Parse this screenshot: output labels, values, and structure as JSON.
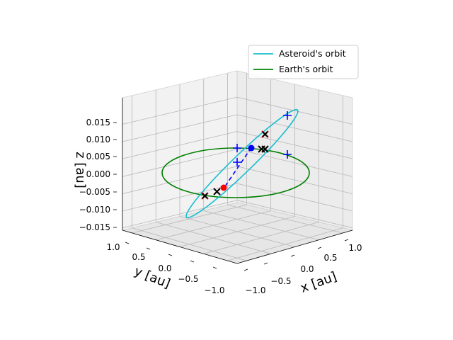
{
  "chart_data": {
    "type": "3d-line",
    "xlabel": "x [au]",
    "ylabel": "y [au]",
    "zlabel": "z [au]",
    "x_ticks": [
      "−1.0",
      "−0.5",
      "0.0",
      "0.5",
      "1.0"
    ],
    "y_ticks": [
      "−1.0",
      "−0.5",
      "0.0",
      "0.5",
      "1.0"
    ],
    "z_ticks": [
      "−0.015",
      "−0.010",
      "−0.005",
      "0.000",
      "0.005",
      "0.010",
      "0.015"
    ],
    "xlim": [
      -1.2,
      1.2
    ],
    "ylim": [
      -1.2,
      1.2
    ],
    "zlim": [
      -0.015,
      0.016
    ],
    "grid": true,
    "legend_position": "top-right",
    "series": [
      {
        "name": "Asteroid's orbit",
        "color": "#17becf"
      },
      {
        "name": "Earth's orbit",
        "color": "#008000"
      }
    ]
  }
}
